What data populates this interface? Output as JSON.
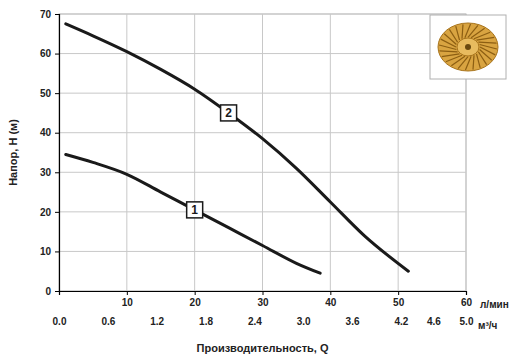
{
  "chart_data": {
    "type": "line",
    "y_label": "Напор, H (м)",
    "x_label": "Производительность, Q",
    "x_unit": "л/мин",
    "x2_unit": "м³/ч",
    "xlim": [
      0,
      60
    ],
    "xticks": [
      10,
      20,
      30,
      40,
      50,
      60
    ],
    "x2lim": [
      0,
      5
    ],
    "x2ticks": [
      {
        "value": 0,
        "label": "0.0"
      },
      0.6,
      1.2,
      1.8,
      2.4,
      {
        "value": 3,
        "label": "3.0"
      },
      3.6,
      4.2,
      4.6,
      {
        "value": 5,
        "label": "5.0"
      }
    ],
    "ylim": [
      0,
      70
    ],
    "yticks": [
      0,
      10,
      20,
      30,
      40,
      50,
      60,
      70
    ],
    "grid": true,
    "series": [
      {
        "name": "1",
        "color": "#1a1a1a",
        "line_style": "solid",
        "x": [
          1,
          5,
          10,
          15,
          20,
          25,
          30,
          35,
          38.5
        ],
        "values": [
          34.5,
          32.5,
          29.5,
          25,
          20.5,
          16,
          11.5,
          7,
          4.5
        ]
      },
      {
        "name": "2",
        "color": "#1a1a1a",
        "line_style": "solid",
        "x": [
          1,
          5,
          10,
          15,
          20,
          25,
          30,
          35,
          40,
          45,
          51.5
        ],
        "values": [
          67.5,
          64.5,
          60.5,
          56,
          51,
          45,
          38.5,
          31,
          22.5,
          14,
          5
        ]
      }
    ]
  }
}
